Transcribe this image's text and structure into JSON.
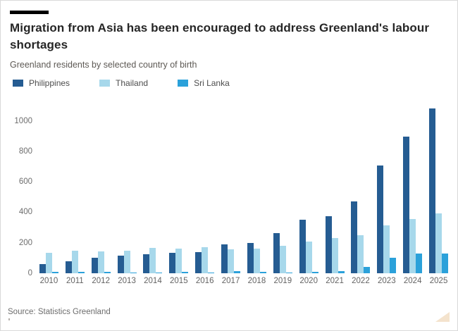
{
  "header": {
    "title": "Migration from Asia has been encouraged to address Greenland's labour shortages",
    "subtitle": "Greenland residents by selected country of birth"
  },
  "source": {
    "text": "Source: Statistics Greenland"
  },
  "colors": {
    "philippines": "#255c92",
    "thailand": "#a7d8eb",
    "sri_lanka": "#2ba1da",
    "kicker_bar": "#000000",
    "title_text": "#262626",
    "axis_text": "#6d6d6d",
    "resize_handle": "#f4e3cd"
  },
  "chart_data": {
    "type": "bar",
    "title": "Migration from Asia has been encouraged to address Greenland's labour shortages",
    "subtitle": "Greenland residents by selected country of birth",
    "categories": [
      "2010",
      "2011",
      "2012",
      "2013",
      "2014",
      "2015",
      "2016",
      "2017",
      "2018",
      "2019",
      "2020",
      "2021",
      "2022",
      "2023",
      "2024",
      "2025"
    ],
    "series": [
      {
        "name": "Philippines",
        "color": "#255c92",
        "values": [
          60,
          80,
          100,
          115,
          125,
          135,
          140,
          190,
          200,
          265,
          350,
          375,
          470,
          705,
          895,
          1080
        ]
      },
      {
        "name": "Thailand",
        "color": "#a7d8eb",
        "values": [
          135,
          150,
          145,
          150,
          165,
          160,
          170,
          155,
          160,
          180,
          210,
          230,
          250,
          315,
          355,
          395
        ]
      },
      {
        "name": "Sri Lanka",
        "color": "#2ba1da",
        "values": [
          10,
          10,
          10,
          5,
          5,
          10,
          5,
          15,
          10,
          5,
          10,
          15,
          40,
          100,
          130,
          130
        ]
      }
    ],
    "xlabel": "",
    "ylabel": "",
    "y_ticks": [
      0,
      200,
      400,
      600,
      800,
      1000
    ],
    "ylim": [
      0,
      1095
    ],
    "grid": false,
    "legend_position": "top"
  }
}
